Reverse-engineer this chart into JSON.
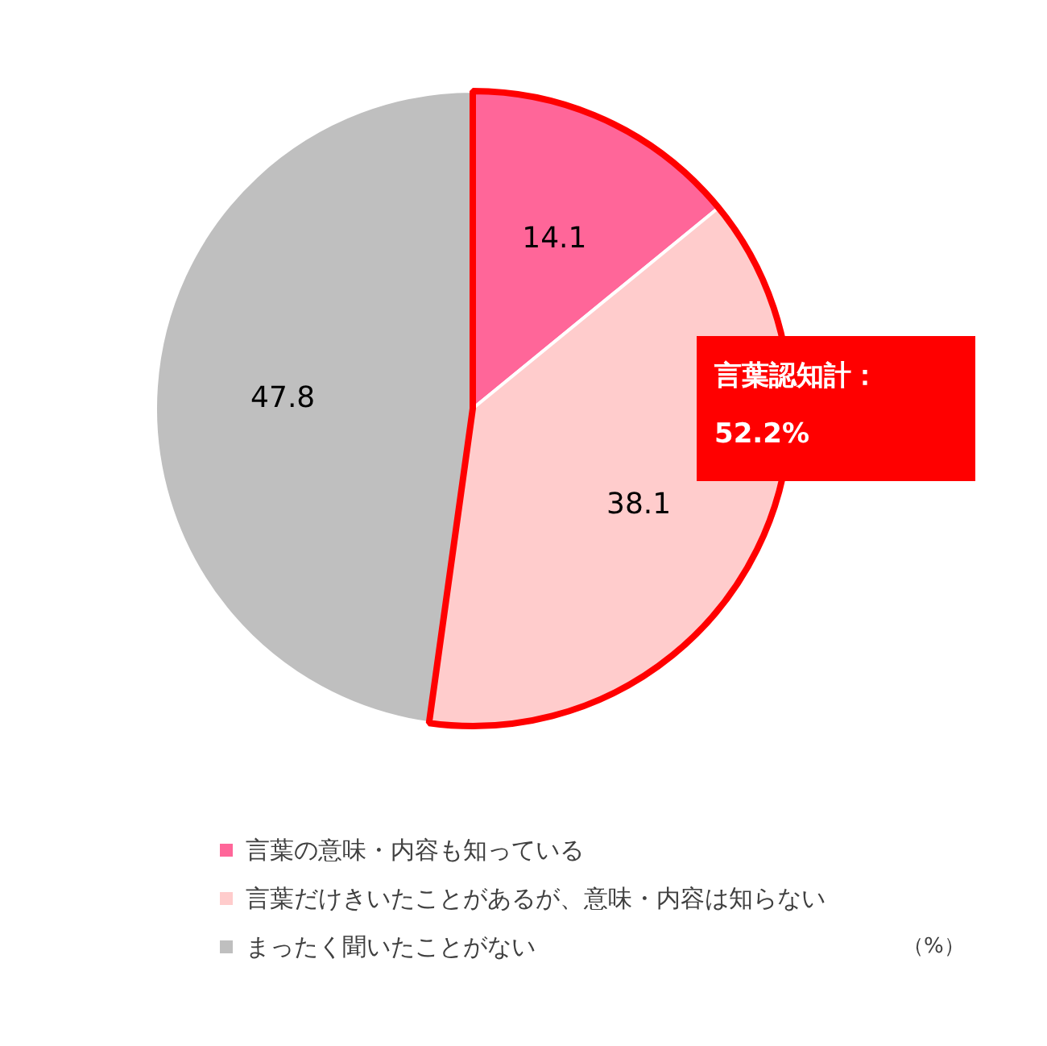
{
  "chart_data": {
    "type": "pie",
    "categories": [
      "言葉の意味・内容も知っている",
      "言葉だけきいたことがあるが、意味・内容は知らない",
      "まったく聞いたことがない"
    ],
    "values": [
      14.1,
      38.1,
      47.8
    ],
    "colors": [
      "#ff6699",
      "#ffcccc",
      "#bfbfbf"
    ],
    "data_labels": true,
    "legend": "bottom",
    "annotations": [
      "言葉認知計：\n52.2%",
      "（%）"
    ]
  }
}
